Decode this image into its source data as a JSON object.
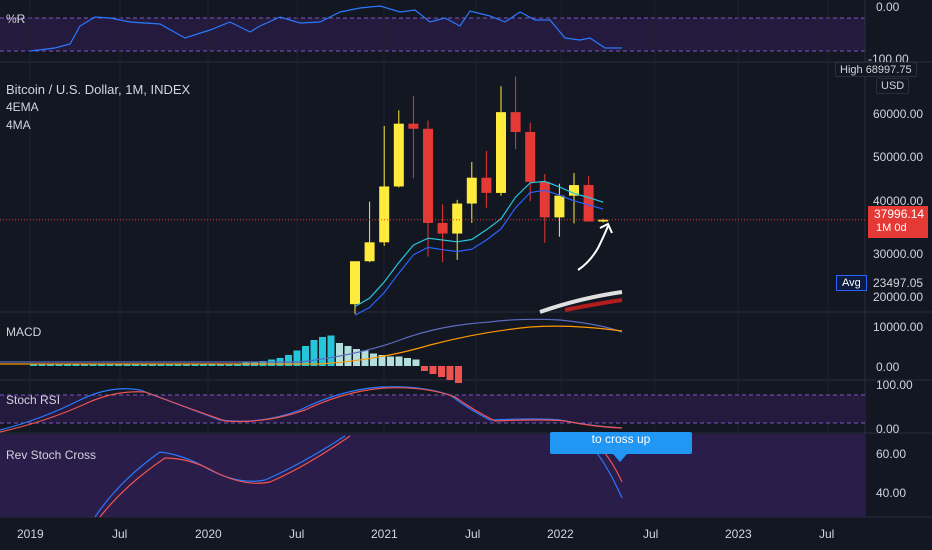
{
  "indicators": {
    "pct_r": {
      "label": "%R",
      "scale": [
        "0.00",
        "-100.00"
      ]
    },
    "macd": {
      "label": "MACD",
      "scale": [
        "10000.00",
        "0.00"
      ]
    },
    "stoch_rsi": {
      "label": "Stoch RSI",
      "scale": [
        "100.00",
        "0.00"
      ]
    },
    "rev_stoch": {
      "label": "Rev Stoch Cross",
      "scale": [
        "60.00",
        "40.00"
      ],
      "tooltip": "to cross up"
    }
  },
  "main": {
    "title": "Bitcoin / U.S. Dollar, 1M, INDEX",
    "legend": [
      "4EMA",
      "4MA"
    ],
    "high_label": "High",
    "high_value": "68997.75",
    "currency": "USD",
    "price_scale": [
      "60000.00",
      "50000.00",
      "40000.00",
      "30000.00",
      "20000.00"
    ],
    "last_price": "37996.14",
    "countdown": "1M 0d",
    "avg_label": "Avg",
    "avg_value": "23497.05"
  },
  "time_axis": [
    "2019",
    "Jul",
    "2020",
    "Jul",
    "2021",
    "Jul",
    "2022",
    "Jul",
    "2023",
    "Jul"
  ],
  "colors": {
    "bull": "#ffeb3b",
    "bear": "#e53935",
    "accent": "#2962ff",
    "bg": "#131722",
    "grid": "#1e222d"
  },
  "chart_data": {
    "type": "candlestick",
    "categories": [
      "2020-12",
      "2021-01",
      "2021-02",
      "2021-03",
      "2021-04",
      "2021-05",
      "2021-06",
      "2021-07",
      "2021-08",
      "2021-09",
      "2021-10",
      "2021-11",
      "2021-12",
      "2022-01",
      "2022-02",
      "2022-03",
      "2022-04",
      "2022-05"
    ],
    "ohlc": [
      [
        19700,
        29000,
        17600,
        29000
      ],
      [
        29000,
        41900,
        28800,
        33100
      ],
      [
        33100,
        58300,
        32300,
        45200
      ],
      [
        45200,
        61700,
        45000,
        58800
      ],
      [
        58800,
        64800,
        47000,
        57700
      ],
      [
        57700,
        59500,
        30000,
        37300
      ],
      [
        37300,
        41300,
        28800,
        35000
      ],
      [
        35000,
        42300,
        29300,
        41500
      ],
      [
        41500,
        50500,
        37300,
        47100
      ],
      [
        47100,
        52900,
        40600,
        43800
      ],
      [
        43800,
        66900,
        43200,
        61300
      ],
      [
        61300,
        69000,
        53300,
        57000
      ],
      [
        57000,
        59000,
        42000,
        46200
      ],
      [
        46200,
        47900,
        33000,
        38500
      ],
      [
        38500,
        45800,
        34300,
        43200
      ],
      [
        43200,
        48100,
        37200,
        45500
      ],
      [
        45500,
        47400,
        37700,
        37600
      ],
      [
        37600,
        38200,
        37400,
        37996.14
      ]
    ],
    "series": [
      {
        "name": "4EMA",
        "values": [
          19200,
          21000,
          24500,
          28700,
          32500,
          34000,
          33600,
          33200,
          33700,
          35800,
          38200,
          42900,
          46000,
          46300,
          45100,
          43700,
          42800,
          41800
        ]
      },
      {
        "name": "4MA",
        "values": [
          17300,
          19000,
          22200,
          26400,
          30400,
          32000,
          31500,
          31100,
          31600,
          33600,
          36000,
          40600,
          43900,
          44400,
          43300,
          42100,
          41200,
          40300
        ]
      }
    ],
    "ylim": [
      18000,
      70000
    ]
  }
}
